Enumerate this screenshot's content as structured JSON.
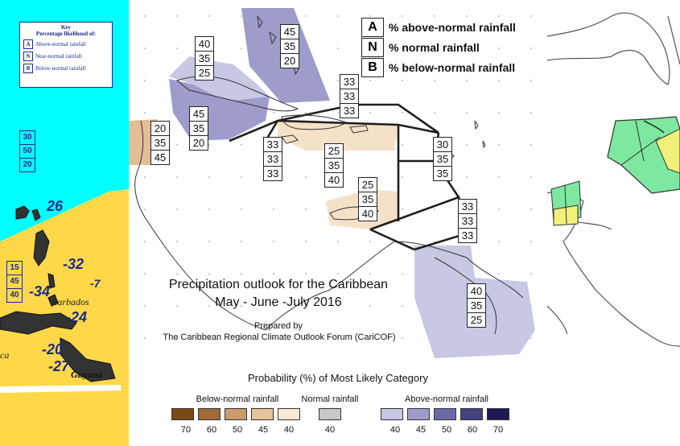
{
  "map_title": "Precipitation outlook for the Caribbean",
  "map_period": "May - June -July 2016",
  "prepared_by": "Prepared by",
  "prepared_org": "The Caribbean Regional Climate Outlook Forum (CariCOF)",
  "key": [
    {
      "letter": "A",
      "text": "% above-normal rainfall"
    },
    {
      "letter": "N",
      "text": "% normal rainfall"
    },
    {
      "letter": "B",
      "text": "% below-normal rainfall"
    }
  ],
  "regions": [
    {
      "id": "cuba-west",
      "values": [
        "40",
        "35",
        "25"
      ],
      "fill": "#c8c8e4"
    },
    {
      "id": "bahamas",
      "values": [
        "45",
        "35",
        "20"
      ],
      "fill": "#9d9ccb"
    },
    {
      "id": "cuba-central",
      "values": [
        "45",
        "35",
        "20"
      ],
      "fill": "#9d9ccb"
    },
    {
      "id": "yucatan",
      "values": [
        "20",
        "35",
        "45"
      ],
      "fill": "#e2bd95"
    },
    {
      "id": "atlantic-north",
      "values": [
        "33",
        "33",
        "33"
      ],
      "fill": "none"
    },
    {
      "id": "jamaica-south",
      "values": [
        "33",
        "33",
        "33"
      ],
      "fill": "none"
    },
    {
      "id": "hispaniola",
      "values": [
        "25",
        "35",
        "40"
      ],
      "fill": "#f5e1c8"
    },
    {
      "id": "leewards",
      "values": [
        "30",
        "35",
        "35"
      ],
      "fill": "none"
    },
    {
      "id": "abc-islands",
      "values": [
        "25",
        "35",
        "40"
      ],
      "fill": "#f5e1c8"
    },
    {
      "id": "trinidad",
      "values": [
        "33",
        "33",
        "33"
      ],
      "fill": "none"
    },
    {
      "id": "guianas",
      "values": [
        "40",
        "35",
        "25"
      ],
      "fill": "#c8c8e4"
    }
  ],
  "legend": {
    "title": "Probability (%) of Most Likely Category",
    "below": {
      "label": "Below-normal rainfall",
      "ticks": [
        "70",
        "60",
        "50",
        "45",
        "40"
      ],
      "colors": [
        "#7a4a16",
        "#a06a3a",
        "#c99a6a",
        "#e5c39d",
        "#f8e8d6"
      ]
    },
    "normal": {
      "label": "Normal rainfall",
      "ticks": [
        "40"
      ],
      "colors": [
        "#c8c8c8"
      ]
    },
    "above": {
      "label": "Above-normal rainfall",
      "ticks": [
        "40",
        "45",
        "50",
        "60",
        "70"
      ],
      "colors": [
        "#c8c8e4",
        "#9d9ccb",
        "#6b6aa6",
        "#45437f",
        "#1e1a55"
      ]
    }
  },
  "left_panel": {
    "key_title": "Key",
    "key_subtitle": "Percentage likelihood of:",
    "key_rows": [
      {
        "letter": "A",
        "text": "Above-normal rainfall"
      },
      {
        "letter": "N",
        "text": "Near-normal rainfall"
      },
      {
        "letter": "B",
        "text": "Below-normal rainfall"
      }
    ],
    "upper_box": [
      "30",
      "50",
      "20"
    ],
    "lower_box": [
      "15",
      "45",
      "40"
    ],
    "numbers": [
      "26",
      "-32",
      "-7",
      "-34",
      "-24",
      "-20",
      "-27"
    ],
    "labels": [
      "Barbados",
      "Guyana",
      "ca"
    ],
    "colors": {
      "upper": "#00ffff",
      "lower": "#ffd84a"
    }
  },
  "right_panel": {
    "colors": {
      "green": "#7ee8a0",
      "yellow": "#f0f07a"
    }
  }
}
